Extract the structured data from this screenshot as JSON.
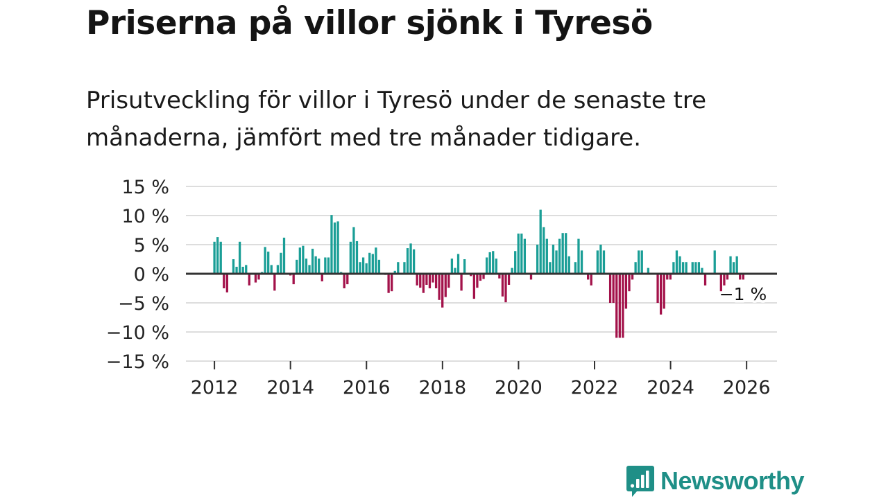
{
  "title": "Priserna på villor sjönk i Tyresö",
  "subtitle": "Prisutveckling för villor i Tyresö under de senaste tre månaderna, jämfört med tre månader tidigare.",
  "brand": {
    "name": "Newsworthy",
    "color": "#1f8f87"
  },
  "colors": {
    "positive": "#1a9e96",
    "negative": "#a3124a",
    "grid": "#dddddd",
    "zero": "#333333",
    "text": "#222222"
  },
  "chart_data": {
    "type": "bar",
    "title": "Priserna på villor sjönk i Tyresö",
    "xlabel": "",
    "ylabel": "",
    "ylim": [
      -15,
      15
    ],
    "yticks": [
      15,
      10,
      5,
      0,
      -5,
      -10,
      -15
    ],
    "ytick_labels": [
      "15 %",
      "10 %",
      "5 %",
      "0 %",
      "−5 %",
      "−10 %",
      "−15 %"
    ],
    "x_start": 2012.0,
    "x_step": 0.0833,
    "xlim": [
      2011.25,
      2026.8
    ],
    "xticks": [
      2012,
      2014,
      2016,
      2018,
      2020,
      2022,
      2024,
      2026
    ],
    "xtick_labels": [
      "2012",
      "2014",
      "2016",
      "2018",
      "2020",
      "2022",
      "2024",
      "2026"
    ],
    "values": [
      5.5,
      6.3,
      5.5,
      -2.5,
      -3.2,
      0,
      2.5,
      1.2,
      5.5,
      1.2,
      1.5,
      -2,
      0,
      -1.5,
      -1,
      0.3,
      4.6,
      3.8,
      1.5,
      -2.9,
      1.5,
      3.6,
      6.2,
      0,
      -0.3,
      -1.8,
      2.4,
      4.5,
      4.8,
      2.6,
      1.5,
      4.3,
      3,
      2.6,
      -1.3,
      2.8,
      2.8,
      10.1,
      8.8,
      9,
      0.3,
      -2.5,
      -1.8,
      5.5,
      8,
      5.6,
      2,
      2.8,
      1.8,
      3.6,
      3.4,
      4.5,
      2.4,
      0,
      -0.2,
      -3.3,
      -3,
      0.5,
      2,
      0,
      2,
      4.4,
      5.2,
      4.2,
      -2,
      -2.4,
      -3.3,
      -1.9,
      -2.5,
      -1.5,
      -2.5,
      -4.5,
      -5.8,
      -4,
      -2.4,
      2.6,
      1,
      3.4,
      -2.9,
      2.5,
      0,
      -0.4,
      -4.3,
      -2.4,
      -1.2,
      -0.9,
      2.8,
      3.7,
      3.9,
      2.6,
      -0.8,
      -3.9,
      -4.9,
      -1.9,
      1,
      3.9,
      6.9,
      6.9,
      6,
      0,
      -1,
      0,
      5,
      11,
      8,
      6,
      2,
      5,
      4,
      6,
      7,
      7,
      3,
      0,
      2,
      6,
      4,
      0,
      -1,
      -2,
      0,
      4,
      5,
      4,
      0,
      -5,
      -5,
      -11,
      -11,
      -11,
      -6,
      -3,
      -1,
      2,
      4,
      4,
      0,
      1,
      0,
      0,
      -5,
      -7,
      -6,
      -1,
      -1,
      2,
      4,
      3,
      2,
      2,
      0,
      2,
      2,
      2,
      1,
      -2,
      0,
      0,
      4,
      0,
      -3,
      -2,
      -1,
      3,
      2,
      3,
      -1,
      -1
    ],
    "last_label": "−1 %"
  }
}
